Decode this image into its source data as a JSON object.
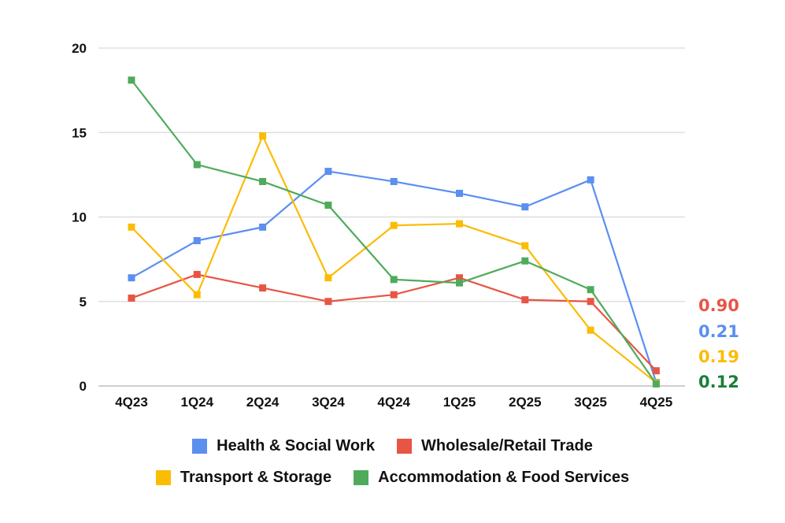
{
  "chart_data": {
    "type": "line",
    "title": "",
    "xlabel": "",
    "ylabel": "",
    "ylim": [
      0,
      20
    ],
    "yticks": [
      0,
      5,
      10,
      15,
      20
    ],
    "grid": true,
    "legend_position": "bottom",
    "categories": [
      "4Q23",
      "1Q24",
      "2Q24",
      "3Q24",
      "4Q24",
      "1Q25",
      "2Q25",
      "3Q25",
      "4Q25"
    ],
    "series": [
      {
        "name": "Health & Social Work",
        "color": "#5b8ff0",
        "values": [
          6.4,
          8.6,
          9.4,
          12.7,
          12.1,
          11.4,
          10.6,
          12.2,
          0.21
        ]
      },
      {
        "name": "Wholesale/Retail Trade",
        "color": "#e85545",
        "values": [
          5.2,
          6.6,
          5.8,
          5.0,
          5.4,
          6.4,
          5.1,
          5.0,
          0.9
        ]
      },
      {
        "name": "Transport & Storage",
        "color": "#fbbc04",
        "values": [
          9.4,
          5.4,
          14.8,
          6.4,
          9.5,
          9.6,
          8.3,
          3.3,
          0.19
        ]
      },
      {
        "name": "Accommodation & Food Services",
        "color": "#4fab5b",
        "values": [
          18.1,
          13.1,
          12.1,
          10.7,
          6.3,
          6.1,
          7.4,
          5.7,
          0.12
        ]
      }
    ],
    "annotations": [
      {
        "text": "0.90",
        "color": "#e85545"
      },
      {
        "text": "0.21",
        "color": "#5b8ff0"
      },
      {
        "text": "0.19",
        "color": "#fbbc04"
      },
      {
        "text": "0.12",
        "color": "#1a7f37"
      }
    ]
  },
  "legend": {
    "row1": [
      {
        "label": "Health & Social Work",
        "color": "#5b8ff0"
      },
      {
        "label": "Wholesale/Retail Trade",
        "color": "#e85545"
      }
    ],
    "row2": [
      {
        "label": "Transport & Storage",
        "color": "#fbbc04"
      },
      {
        "label": "Accommodation & Food Services",
        "color": "#4fab5b"
      }
    ]
  }
}
